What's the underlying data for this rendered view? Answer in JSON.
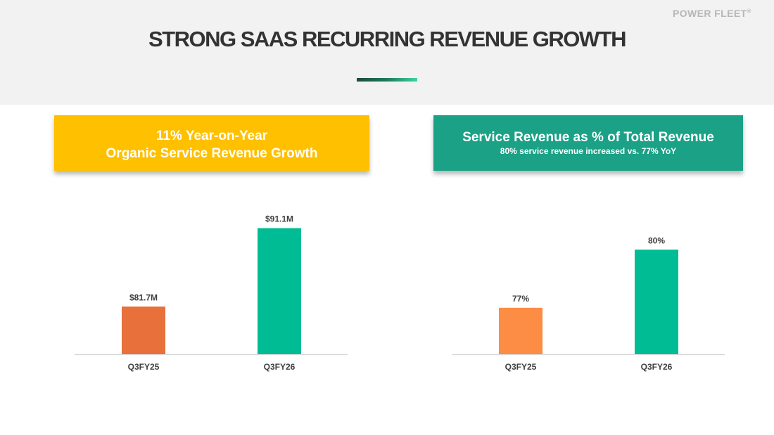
{
  "header": {
    "title": "STRONG SAAS RECURRING REVENUE GROWTH",
    "brand": "POWER FLEET",
    "brand_mark": "®"
  },
  "callouts": {
    "left": {
      "line1": "11% Year-on-Year",
      "line2": "Organic Service Revenue Growth"
    },
    "right": {
      "heading": "Service Revenue as % of Total Revenue",
      "subheading": "80% service revenue increased vs. 77% YoY"
    }
  },
  "colors": {
    "left_first_bar": "#e8703a",
    "right_first_bar": "#fd8c44",
    "second_bar": "#00bc94",
    "axis": "#d9d9d9",
    "label": "#404040",
    "callout_left": "#ffc000",
    "callout_right": "#1aa186"
  },
  "chart_data": [
    {
      "type": "bar",
      "title": "",
      "xlabel": "",
      "ylabel": "",
      "categories": [
        "Q3FY25",
        "Q3FY26"
      ],
      "values": [
        81.7,
        91.1
      ],
      "data_labels": [
        "$81.7M",
        "$91.1M"
      ],
      "units": "$M",
      "ylim": [
        76,
        92
      ],
      "grid": false,
      "legend": "none"
    },
    {
      "type": "bar",
      "title": "",
      "xlabel": "",
      "ylabel": "",
      "categories": [
        "Q3FY25",
        "Q3FY26"
      ],
      "values": [
        77,
        80
      ],
      "data_labels": [
        "77%",
        "80%"
      ],
      "units": "%",
      "ylim": [
        74.6,
        81.5
      ],
      "grid": false,
      "legend": "none"
    }
  ]
}
